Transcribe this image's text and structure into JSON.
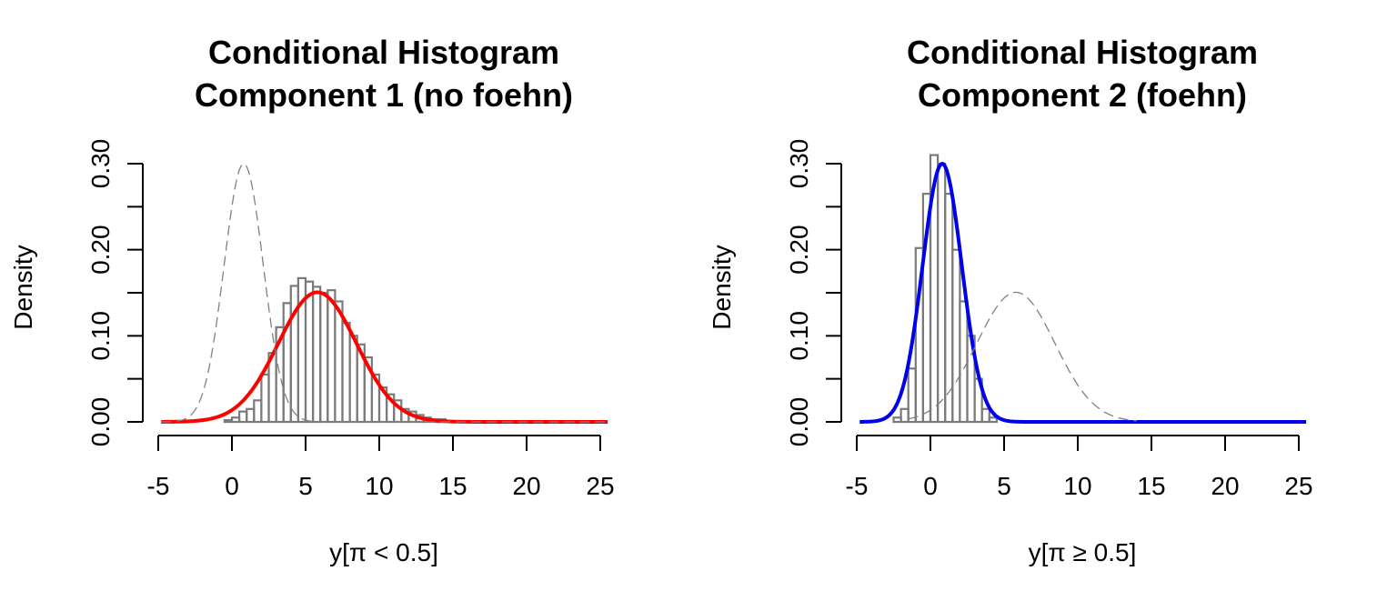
{
  "chart_data": [
    {
      "type": "histogram",
      "title_lines": [
        "Conditional Histogram",
        "Component 1 (no foehn)"
      ],
      "xlabel": "y[π < 0.5]",
      "ylabel": "Density",
      "xlim": [
        -5,
        25.5
      ],
      "ylim": [
        0,
        0.3
      ],
      "x_ticks": [
        "-5",
        "0",
        "5",
        "10",
        "15",
        "20",
        "25"
      ],
      "x_tick_values": [
        -5,
        0,
        5,
        10,
        15,
        20,
        25
      ],
      "y_tick_labels": [
        "0.00",
        "0.10",
        "0.20",
        "0.30"
      ],
      "y_tick_values": [
        0,
        0.05,
        0.1,
        0.15,
        0.2,
        0.25,
        0.3
      ],
      "histogram": {
        "bin_width": 0.5,
        "bins": [
          {
            "x0": -0.5,
            "density": 0.002
          },
          {
            "x0": 0.0,
            "density": 0.005
          },
          {
            "x0": 0.5,
            "density": 0.012
          },
          {
            "x0": 1.0,
            "density": 0.015
          },
          {
            "x0": 1.5,
            "density": 0.025
          },
          {
            "x0": 2.0,
            "density": 0.055
          },
          {
            "x0": 2.5,
            "density": 0.08
          },
          {
            "x0": 3.0,
            "density": 0.11
          },
          {
            "x0": 3.5,
            "density": 0.138
          },
          {
            "x0": 4.0,
            "density": 0.158
          },
          {
            "x0": 4.5,
            "density": 0.167
          },
          {
            "x0": 5.0,
            "density": 0.163
          },
          {
            "x0": 5.5,
            "density": 0.157
          },
          {
            "x0": 6.0,
            "density": 0.15
          },
          {
            "x0": 6.5,
            "density": 0.153
          },
          {
            "x0": 7.0,
            "density": 0.14
          },
          {
            "x0": 7.5,
            "density": 0.115
          },
          {
            "x0": 8.0,
            "density": 0.1
          },
          {
            "x0": 8.5,
            "density": 0.09
          },
          {
            "x0": 9.0,
            "density": 0.075
          },
          {
            "x0": 9.5,
            "density": 0.055
          },
          {
            "x0": 10.0,
            "density": 0.04
          },
          {
            "x0": 10.5,
            "density": 0.032
          },
          {
            "x0": 11.0,
            "density": 0.025
          },
          {
            "x0": 11.5,
            "density": 0.015
          },
          {
            "x0": 12.0,
            "density": 0.012
          },
          {
            "x0": 12.5,
            "density": 0.008
          },
          {
            "x0": 13.0,
            "density": 0.005
          },
          {
            "x0": 13.5,
            "density": 0.003
          },
          {
            "x0": 14.0,
            "density": 0.003
          }
        ]
      },
      "curves": [
        {
          "role": "fitted",
          "style": "solid",
          "color": "#ff0000",
          "mean": 5.8,
          "sd": 2.65,
          "range": [
            -4.8,
            25.5
          ]
        },
        {
          "role": "other-component",
          "style": "dashed",
          "color": "#808080",
          "mean": 0.8,
          "sd": 1.33,
          "range": [
            -4.8,
            25.5
          ]
        }
      ]
    },
    {
      "type": "histogram",
      "title_lines": [
        "Conditional Histogram",
        "Component 2 (foehn)"
      ],
      "xlabel": "y[π ≥ 0.5]",
      "ylabel": "Density",
      "xlim": [
        -5,
        25.5
      ],
      "ylim": [
        0,
        0.3
      ],
      "x_ticks": [
        "-5",
        "0",
        "5",
        "10",
        "15",
        "20",
        "25"
      ],
      "x_tick_values": [
        -5,
        0,
        5,
        10,
        15,
        20,
        25
      ],
      "y_tick_labels": [
        "0.00",
        "0.10",
        "0.20",
        "0.30"
      ],
      "y_tick_values": [
        0,
        0.05,
        0.1,
        0.15,
        0.2,
        0.25,
        0.3
      ],
      "histogram": {
        "bin_width": 0.5,
        "bins": [
          {
            "x0": -2.5,
            "density": 0.005
          },
          {
            "x0": -2.0,
            "density": 0.015
          },
          {
            "x0": -1.5,
            "density": 0.062
          },
          {
            "x0": -1.0,
            "density": 0.202
          },
          {
            "x0": -0.5,
            "density": 0.265
          },
          {
            "x0": 0.0,
            "density": 0.31
          },
          {
            "x0": 0.5,
            "density": 0.3
          },
          {
            "x0": 1.0,
            "density": 0.265
          },
          {
            "x0": 1.5,
            "density": 0.2
          },
          {
            "x0": 2.0,
            "density": 0.14
          },
          {
            "x0": 2.5,
            "density": 0.1
          },
          {
            "x0": 3.0,
            "density": 0.05
          },
          {
            "x0": 3.5,
            "density": 0.015
          },
          {
            "x0": 4.0,
            "density": 0.005
          }
        ]
      },
      "curves": [
        {
          "role": "fitted",
          "style": "solid",
          "color": "#0000ee",
          "mean": 0.8,
          "sd": 1.33,
          "range": [
            -4.8,
            25.5
          ]
        },
        {
          "role": "other-component",
          "style": "dashed",
          "color": "#808080",
          "mean": 5.8,
          "sd": 2.65,
          "range": [
            -1.5,
            14.0
          ]
        }
      ]
    }
  ]
}
